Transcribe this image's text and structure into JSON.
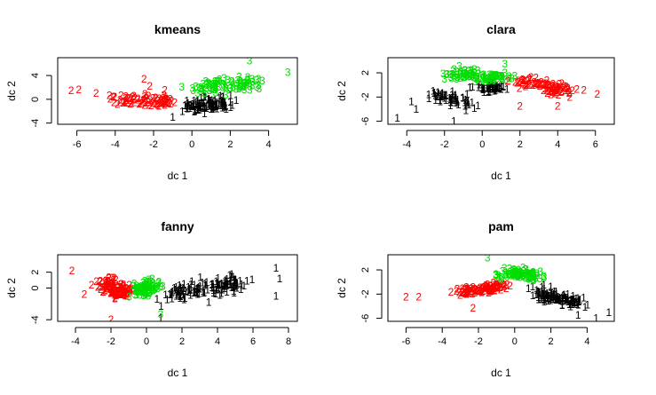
{
  "colors": {
    "1": "#000000",
    "2": "#ff0000",
    "3": "#00dd00"
  },
  "chart_data": [
    {
      "type": "scatter",
      "title": "kmeans",
      "xlabel": "dc 1",
      "ylabel": "dc 2",
      "xlim": [
        -7,
        5.5
      ],
      "ylim": [
        -4.2,
        7
      ],
      "xticks": [
        -6,
        -4,
        -2,
        0,
        2,
        4
      ],
      "yticks": [
        -4,
        0,
        4
      ],
      "clusters": [
        {
          "label": "1",
          "color": "#000000",
          "anchors": [
            [
              2,
              -0.5
            ],
            [
              -0.5,
              -2
            ],
            [
              -1,
              -3
            ]
          ],
          "spread": [
            0.9,
            1.1
          ],
          "count": 110
        },
        {
          "label": "2",
          "color": "#ff0000",
          "anchors": [
            [
              -6.3,
              1.5
            ],
            [
              -5.9,
              1.6
            ],
            [
              -5.0,
              1.0
            ],
            [
              -2.2,
              2.2
            ],
            [
              -2.5,
              3.4
            ]
          ],
          "spread": [
            1.2,
            0.9
          ],
          "count": 90
        },
        {
          "label": "3",
          "color": "#00dd00",
          "anchors": [
            [
              3,
              6.5
            ],
            [
              5,
              4.5
            ],
            [
              3.5,
              1.8
            ]
          ],
          "spread": [
            1.0,
            1.3
          ],
          "count": 90
        }
      ]
    },
    {
      "type": "scatter",
      "title": "clara",
      "xlabel": "dc 1",
      "ylabel": "dc 2",
      "xlim": [
        -5,
        7
      ],
      "ylim": [
        -6.5,
        4.5
      ],
      "xticks": [
        -4,
        -2,
        0,
        2,
        4,
        6
      ],
      "yticks": [
        -6,
        -2,
        2
      ],
      "clusters": [
        {
          "label": "1",
          "color": "#000000",
          "anchors": [
            [
              -4.5,
              -5.5
            ],
            [
              -3.5,
              -4
            ],
            [
              -1.5,
              -6
            ]
          ],
          "spread": [
            1.2,
            1.3
          ],
          "count": 120
        },
        {
          "label": "2",
          "color": "#ff0000",
          "anchors": [
            [
              6.1,
              -1.5
            ],
            [
              4,
              -3.5
            ],
            [
              2,
              -3.5
            ]
          ],
          "spread": [
            1.1,
            0.9
          ],
          "count": 100
        },
        {
          "label": "3",
          "color": "#00dd00",
          "anchors": [
            [
              -2,
              1
            ],
            [
              1.2,
              3.5
            ]
          ],
          "spread": [
            1.1,
            0.9
          ],
          "count": 100
        }
      ]
    },
    {
      "type": "scatter",
      "title": "fanny",
      "xlabel": "dc 1",
      "ylabel": "dc 2",
      "xlim": [
        -5,
        8.5
      ],
      "ylim": [
        -4.2,
        4.2
      ],
      "xticks": [
        -4,
        -2,
        0,
        2,
        4,
        6,
        8
      ],
      "yticks": [
        -4,
        0,
        2
      ],
      "clusters": [
        {
          "label": "1",
          "color": "#000000",
          "anchors": [
            [
              7.3,
              2.5
            ],
            [
              7.5,
              1.2
            ],
            [
              7.3,
              -1
            ],
            [
              0.8,
              -3.8
            ]
          ],
          "spread": [
            1.8,
            0.9
          ],
          "count": 140
        },
        {
          "label": "2",
          "color": "#ff0000",
          "anchors": [
            [
              -4.2,
              2.2
            ],
            [
              -3.5,
              -0.8
            ],
            [
              -2,
              -4
            ]
          ],
          "spread": [
            0.7,
            0.8
          ],
          "count": 130
        },
        {
          "label": "3",
          "color": "#00dd00",
          "anchors": [
            [
              0.8,
              -3.3
            ]
          ],
          "spread": [
            0.6,
            0.9
          ],
          "count": 90
        }
      ]
    },
    {
      "type": "scatter",
      "title": "pam",
      "xlabel": "dc 1",
      "ylabel": "dc 2",
      "xlim": [
        -7,
        5.5
      ],
      "ylim": [
        -6.5,
        4.5
      ],
      "xticks": [
        -6,
        -4,
        -2,
        0,
        2,
        4
      ],
      "yticks": [
        -6,
        -2,
        2
      ],
      "clusters": [
        {
          "label": "1",
          "color": "#000000",
          "anchors": [
            [
              5.2,
              -5
            ],
            [
              3.5,
              -5.5
            ],
            [
              4.5,
              -6
            ]
          ],
          "spread": [
            1.1,
            1.1
          ],
          "count": 120
        },
        {
          "label": "2",
          "color": "#ff0000",
          "anchors": [
            [
              -6,
              -2.5
            ],
            [
              -5.3,
              -2.5
            ],
            [
              -2.3,
              -4.3
            ]
          ],
          "spread": [
            1.3,
            0.9
          ],
          "count": 110
        },
        {
          "label": "3",
          "color": "#00dd00",
          "anchors": [
            [
              -1.5,
              4
            ]
          ],
          "spread": [
            0.9,
            0.9
          ],
          "count": 100
        }
      ]
    }
  ]
}
